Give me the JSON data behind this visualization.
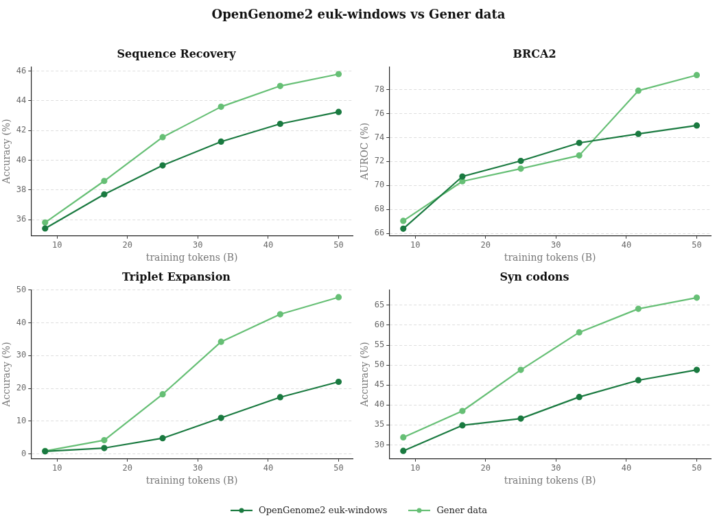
{
  "chart_data": [
    {
      "type": "line",
      "title": "Sequence Recovery",
      "annotations": [
        "OpenGenome2 euk-windows vs Gener data"
      ],
      "xlabel": "training tokens (B)",
      "ylabel": "Accuracy (%)",
      "x": [
        8.3,
        16.7,
        25,
        33.3,
        41.7,
        50
      ],
      "xlim": [
        6.3,
        52
      ],
      "xticks": [
        10,
        20,
        30,
        40,
        50
      ],
      "ylim": [
        34.9,
        46.3
      ],
      "yticks": [
        36,
        38,
        40,
        42,
        44,
        46
      ],
      "grid": "y",
      "marker": "circle",
      "legend": "bottom",
      "series": [
        {
          "name": "OpenGenome2 euk-windows",
          "color": "#1a7a40",
          "values": [
            35.4,
            37.7,
            39.65,
            41.25,
            42.45,
            43.25
          ]
        },
        {
          "name": "Gener data",
          "color": "#66bf75",
          "values": [
            35.8,
            38.6,
            41.55,
            43.6,
            45.0,
            45.8
          ]
        }
      ]
    },
    {
      "type": "line",
      "title": "BRCA2",
      "xlabel": "training tokens (B)",
      "ylabel": "AUROC (%)",
      "x": [
        8.3,
        16.7,
        25,
        33.3,
        41.7,
        50
      ],
      "xlim": [
        6.3,
        52
      ],
      "xticks": [
        10,
        20,
        30,
        40,
        50
      ],
      "ylim": [
        65.8,
        79.9
      ],
      "yticks": [
        66,
        68,
        70,
        72,
        74,
        76,
        78
      ],
      "grid": "y",
      "marker": "circle",
      "series": [
        {
          "color": "#1a7a40",
          "values": [
            66.4,
            70.75,
            72.05,
            73.55,
            74.3,
            75.0
          ]
        },
        {
          "color": "#66bf75",
          "values": [
            67.05,
            70.35,
            71.4,
            72.5,
            77.9,
            79.2
          ]
        }
      ]
    },
    {
      "type": "line",
      "title": "Triplet Expansion",
      "xlabel": "training tokens (B)",
      "ylabel": "Accuracy (%)",
      "x": [
        8.3,
        16.7,
        25,
        33.3,
        41.7,
        50
      ],
      "xlim": [
        6.3,
        52
      ],
      "xticks": [
        10,
        20,
        30,
        40,
        50
      ],
      "ylim": [
        -1.5,
        50.1
      ],
      "yticks": [
        0,
        10,
        20,
        30,
        40,
        50
      ],
      "grid": "y",
      "marker": "circle",
      "series": [
        {
          "color": "#1a7a40",
          "values": [
            0.8,
            1.8,
            4.8,
            11.0,
            17.3,
            22.0
          ]
        },
        {
          "color": "#66bf75",
          "values": [
            0.9,
            4.2,
            18.2,
            34.2,
            42.6,
            47.8
          ]
        }
      ]
    },
    {
      "type": "line",
      "title": "Syn codons",
      "xlabel": "training tokens (B)",
      "ylabel": "Accuracy (%)",
      "x": [
        8.3,
        16.7,
        25,
        33.3,
        41.7,
        50
      ],
      "xlim": [
        6.3,
        52
      ],
      "xticks": [
        10,
        20,
        30,
        40,
        50
      ],
      "ylim": [
        26.5,
        68.9
      ],
      "yticks": [
        30,
        35,
        40,
        45,
        50,
        55,
        60,
        65
      ],
      "grid": "y",
      "marker": "circle",
      "series": [
        {
          "color": "#1a7a40",
          "values": [
            28.5,
            34.9,
            36.6,
            42.0,
            46.2,
            48.8
          ]
        },
        {
          "color": "#66bf75",
          "values": [
            31.9,
            38.5,
            48.8,
            58.2,
            64.1,
            66.9
          ]
        }
      ]
    }
  ]
}
